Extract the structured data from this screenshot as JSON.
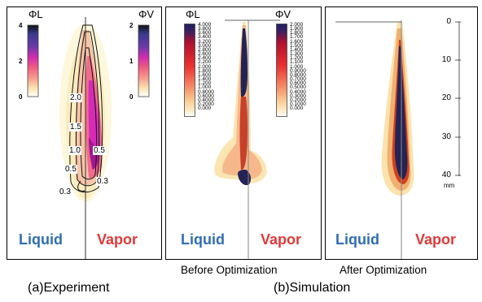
{
  "panels": {
    "experiment": {
      "phi_l": "ΦL",
      "phi_v": "ΦV",
      "scale_l_ticks": [
        "4",
        "2",
        "0"
      ],
      "scale_v_ticks": [
        "2",
        "1",
        "0"
      ],
      "contour_labels": [
        "2.0",
        "1.5",
        "1.0",
        "0.5",
        "0.5",
        "0.3",
        "0.3"
      ],
      "liquid": "Liquid",
      "vapor": "Vapor"
    },
    "before": {
      "phi_l": "ΦL",
      "phi_v": "ΦV",
      "scale_l_values": "4.000\n3.800\n3.600\n3.400\n3.200\n3.000\n2.800\n2.600\n2.400\n2.200\n2.000\n1.800\n1.600\n1.400\n1.200\n1.000\n0.8000\n0.6000\n0.4000\n0.2000\n0.000",
      "scale_v_values": "2.000\n1.900\n1.800\n1.700\n1.600\n1.500\n1.400\n1.300\n1.200\n1.100\n1.000\n0.9000\n0.8000\n0.7000\n0.6000\n0.5000\n0.4000\n0.3000\n0.2000\n0.1000\n0.000",
      "liquid": "Liquid",
      "vapor": "Vapor"
    },
    "after": {
      "ruler_ticks": [
        "0",
        "10",
        "20",
        "30",
        "40"
      ],
      "ruler_unit": "mm",
      "liquid": "Liquid",
      "vapor": "Vapor"
    }
  },
  "captions": {
    "before": "Before Optimization",
    "after": "After Optimization",
    "experiment": "(a)Experiment",
    "simulation": "(b)Simulation"
  },
  "colors": {
    "liquid": "#2f6db4",
    "vapor": "#e03a3a"
  }
}
